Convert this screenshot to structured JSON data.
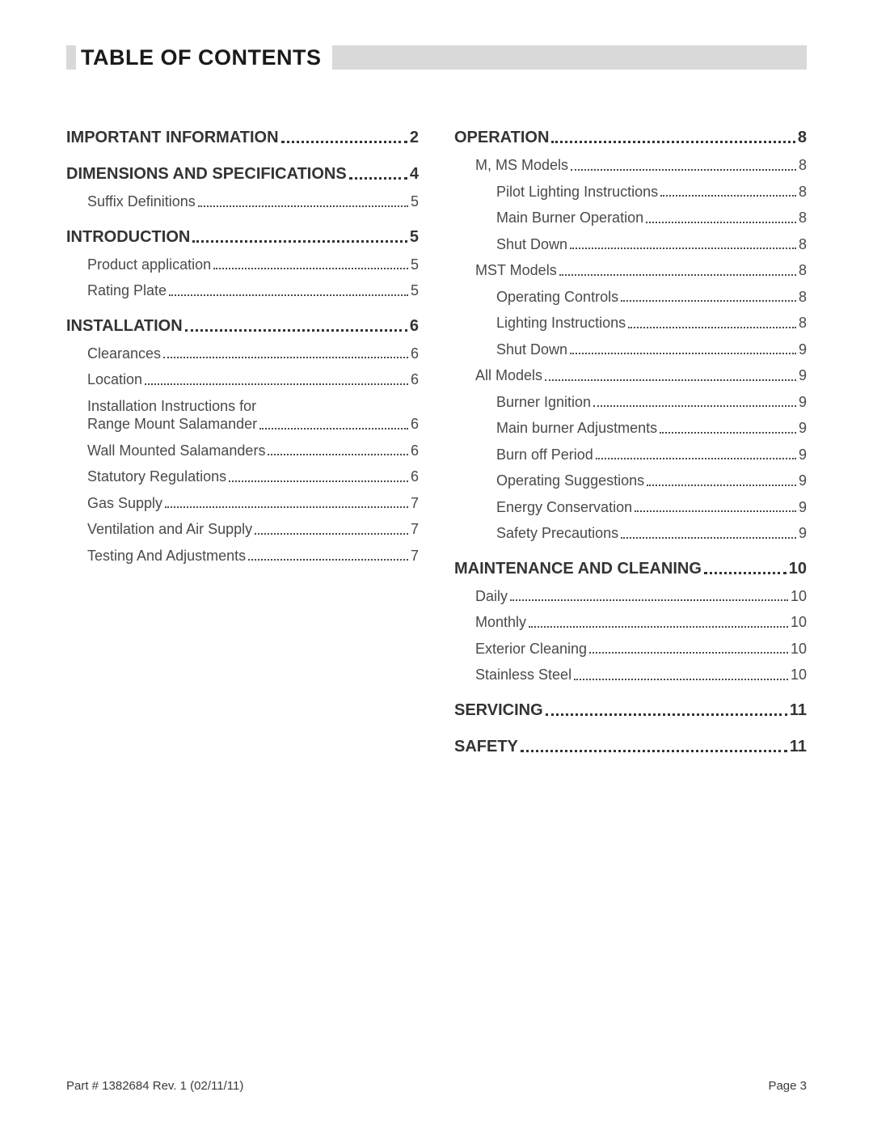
{
  "header": {
    "title": "TABLE OF CONTENTS"
  },
  "colors": {
    "title_bar_bg": "#d9d9d9",
    "text": "#3c3c3c",
    "heading_text": "#333333",
    "page_bg": "#ffffff"
  },
  "typography": {
    "title_fontsize_pt": 20,
    "l1_fontsize_pt": 15,
    "l2_fontsize_pt": 13.5,
    "footer_fontsize_pt": 11
  },
  "toc": {
    "left": [
      {
        "level": 1,
        "label": "IMPORTANT INFORMATION",
        "page": "2"
      },
      {
        "level": 1,
        "label": "DIMENSIONS AND SPECIFICATIONS",
        "page": "4"
      },
      {
        "level": 2,
        "label": "Suffix Definitions",
        "page": "5"
      },
      {
        "level": 1,
        "label": "INTRODUCTION",
        "page": "5"
      },
      {
        "level": 2,
        "label": "Product application",
        "page": "5"
      },
      {
        "level": 2,
        "label": "Rating Plate",
        "page": "5"
      },
      {
        "level": 1,
        "label": "INSTALLATION",
        "page": "6"
      },
      {
        "level": 2,
        "label": "Clearances",
        "page": "6"
      },
      {
        "level": 2,
        "label": "Location",
        "page": "6"
      },
      {
        "level": 2,
        "label": "Installation Instructions for\nRange Mount Salamander",
        "page": "6"
      },
      {
        "level": 2,
        "label": "Wall Mounted Salamanders",
        "page": "6"
      },
      {
        "level": 2,
        "label": "Statutory Regulations",
        "page": "6"
      },
      {
        "level": 2,
        "label": "Gas Supply",
        "page": "7"
      },
      {
        "level": 2,
        "label": "Ventilation and Air Supply",
        "page": "7"
      },
      {
        "level": 2,
        "label": "Testing And Adjustments",
        "page": "7"
      }
    ],
    "right": [
      {
        "level": 1,
        "label": "OPERATION",
        "page": "8"
      },
      {
        "level": 2,
        "label": "M, MS Models",
        "page": "8"
      },
      {
        "level": 3,
        "label": "Pilot Lighting Instructions",
        "page": "8"
      },
      {
        "level": 3,
        "label": "Main Burner Operation",
        "page": "8"
      },
      {
        "level": 3,
        "label": "Shut Down",
        "page": "8"
      },
      {
        "level": 2,
        "label": "MST Models",
        "page": "8"
      },
      {
        "level": 3,
        "label": "Operating Controls",
        "page": "8"
      },
      {
        "level": 3,
        "label": "Lighting Instructions",
        "page": "8"
      },
      {
        "level": 3,
        "label": "Shut Down",
        "page": "9"
      },
      {
        "level": 2,
        "label": "All Models",
        "page": "9"
      },
      {
        "level": 3,
        "label": "Burner Ignition",
        "page": "9"
      },
      {
        "level": 3,
        "label": "Main burner Adjustments",
        "page": "9"
      },
      {
        "level": 3,
        "label": "Burn off Period",
        "page": "9"
      },
      {
        "level": 3,
        "label": "Operating Suggestions",
        "page": "9"
      },
      {
        "level": 3,
        "label": "Energy Conservation",
        "page": "9"
      },
      {
        "level": 3,
        "label": "Safety Precautions",
        "page": "9"
      },
      {
        "level": 1,
        "label": "MAINTENANCE AND CLEANING",
        "page": "10"
      },
      {
        "level": 2,
        "label": "Daily",
        "page": "10"
      },
      {
        "level": 2,
        "label": "Monthly",
        "page": "10"
      },
      {
        "level": 2,
        "label": "Exterior Cleaning",
        "page": "10"
      },
      {
        "level": 2,
        "label": "Stainless Steel",
        "page": "10"
      },
      {
        "level": 1,
        "label": "SERVICING",
        "page": "11"
      },
      {
        "level": 1,
        "label": "SAFETY",
        "page": "11"
      }
    ]
  },
  "footer": {
    "left": "Part # 1382684  Rev. 1  (02/11/11)",
    "right": "Page 3"
  }
}
